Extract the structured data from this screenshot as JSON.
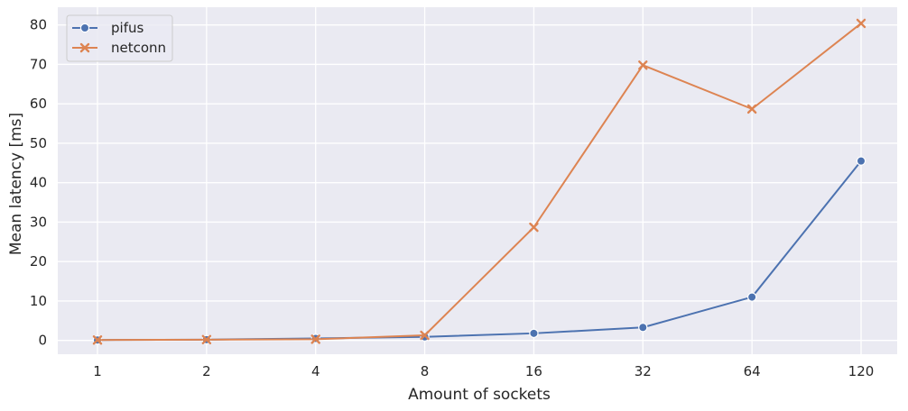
{
  "chart_data": {
    "type": "line",
    "xlabel": "Amount of sockets",
    "ylabel": "Mean latency [ms]",
    "categories": [
      "1",
      "2",
      "4",
      "8",
      "16",
      "32",
      "64",
      "120"
    ],
    "ylim": [
      -3.5,
      84.5
    ],
    "yticks": [
      0,
      10,
      20,
      30,
      40,
      50,
      60,
      70,
      80
    ],
    "grid": true,
    "legend_position": "top-left",
    "series": [
      {
        "name": "pifus",
        "color": "#4c72b0",
        "marker": "circle",
        "values": [
          0.1,
          0.2,
          0.5,
          0.9,
          1.8,
          3.3,
          11.0,
          45.5
        ]
      },
      {
        "name": "netconn",
        "color": "#dd8452",
        "marker": "x",
        "values": [
          0.1,
          0.2,
          0.3,
          1.3,
          28.7,
          69.8,
          58.7,
          80.4
        ]
      }
    ]
  }
}
